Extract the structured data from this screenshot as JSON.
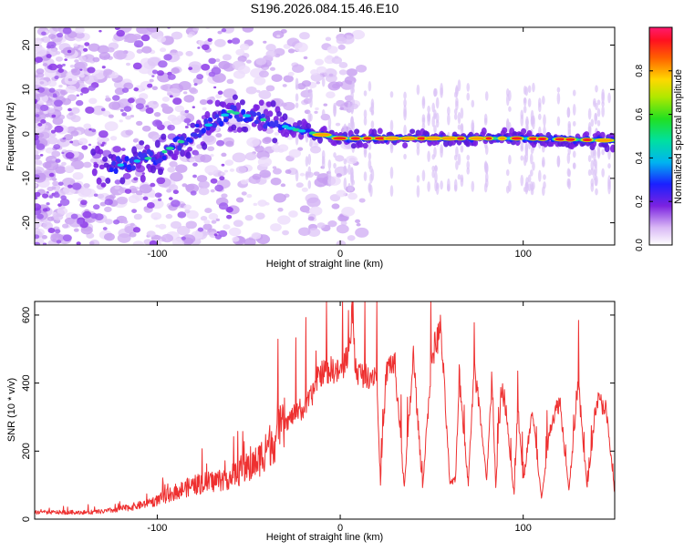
{
  "title": "S196.2026.084.15.46.E10",
  "chart_data": [
    {
      "type": "heatmap",
      "name": "spectrogram",
      "xlabel": "Height of straight line (km)",
      "ylabel": "Frequency (Hz)",
      "xlim": [
        -167,
        150
      ],
      "ylim": [
        -25,
        24
      ],
      "xticks": [
        -100,
        0,
        100
      ],
      "yticks": [
        -20,
        -10,
        0,
        10,
        20
      ],
      "colorbar": {
        "label": "Normalized spectral amplitude",
        "range": [
          0,
          1
        ],
        "ticks": [
          0.0,
          0.2,
          0.4,
          0.6,
          0.8
        ],
        "tick_labels": [
          "0.0",
          "0.2",
          "0.4",
          "0.6",
          "0.8"
        ]
      },
      "ridge": [
        {
          "x": -120,
          "y": -7
        },
        {
          "x": -100,
          "y": -5
        },
        {
          "x": -80,
          "y": 0
        },
        {
          "x": -60,
          "y": 5
        },
        {
          "x": -40,
          "y": 3
        },
        {
          "x": -25,
          "y": 1
        },
        {
          "x": 0,
          "y": -1
        },
        {
          "x": 50,
          "y": -1
        },
        {
          "x": 100,
          "y": -1
        },
        {
          "x": 150,
          "y": -1.5
        }
      ]
    },
    {
      "type": "line",
      "name": "snr",
      "xlabel": "Height of straight line (km)",
      "ylabel": "SNR (10 * v/v)",
      "xlim": [
        -167,
        150
      ],
      "ylim": [
        0,
        640
      ],
      "xticks": [
        -100,
        0,
        100
      ],
      "yticks": [
        0,
        200,
        400,
        600
      ],
      "color": "#ee3030",
      "series": [
        {
          "name": "SNR",
          "x": [
            -167,
            -150,
            -140,
            -130,
            -120,
            -110,
            -100,
            -90,
            -80,
            -70,
            -60,
            -50,
            -45,
            -40,
            -35,
            -30,
            -25,
            -20,
            -15,
            -12,
            -10,
            -5,
            0,
            5,
            7,
            8,
            10,
            15,
            20,
            22,
            25,
            27,
            30,
            35,
            40,
            45,
            50,
            55,
            60,
            63,
            65,
            70,
            73,
            75,
            80,
            83,
            85,
            88,
            90,
            95,
            97,
            100,
            105,
            110,
            115,
            120,
            125,
            130,
            135,
            140,
            145,
            150
          ],
          "values": [
            20,
            20,
            20,
            22,
            30,
            40,
            55,
            80,
            100,
            110,
            125,
            150,
            170,
            210,
            240,
            280,
            310,
            320,
            370,
            420,
            430,
            440,
            430,
            500,
            640,
            450,
            430,
            420,
            430,
            100,
            420,
            460,
            450,
            90,
            480,
            90,
            480,
            560,
            100,
            120,
            420,
            100,
            440,
            380,
            110,
            420,
            90,
            380,
            350,
            70,
            330,
            110,
            320,
            60,
            280,
            350,
            80,
            400,
            90,
            350,
            330,
            80
          ]
        }
      ]
    }
  ]
}
